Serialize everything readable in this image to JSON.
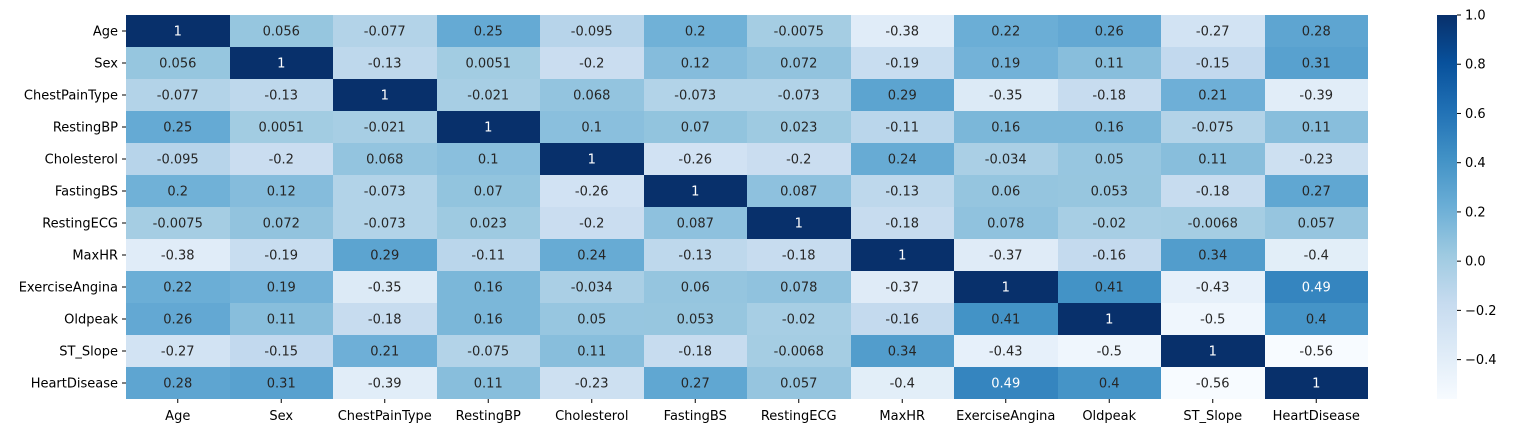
{
  "chart_data": {
    "type": "heatmap",
    "labels": [
      "Age",
      "Sex",
      "ChestPainType",
      "RestingBP",
      "Cholesterol",
      "FastingBS",
      "RestingECG",
      "MaxHR",
      "ExerciseAngina",
      "Oldpeak",
      "ST_Slope",
      "HeartDisease"
    ],
    "values": [
      [
        1,
        0.056,
        -0.077,
        0.25,
        -0.095,
        0.2,
        -0.0075,
        -0.38,
        0.22,
        0.26,
        -0.27,
        0.28
      ],
      [
        0.056,
        1,
        -0.13,
        0.0051,
        -0.2,
        0.12,
        0.072,
        -0.19,
        0.19,
        0.11,
        -0.15,
        0.31
      ],
      [
        -0.077,
        -0.13,
        1,
        -0.021,
        0.068,
        -0.073,
        -0.073,
        0.29,
        -0.35,
        -0.18,
        0.21,
        -0.39
      ],
      [
        0.25,
        0.0051,
        -0.021,
        1,
        0.1,
        0.07,
        0.023,
        -0.11,
        0.16,
        0.16,
        -0.075,
        0.11
      ],
      [
        -0.095,
        -0.2,
        0.068,
        0.1,
        1,
        -0.26,
        -0.2,
        0.24,
        -0.034,
        0.05,
        0.11,
        -0.23
      ],
      [
        0.2,
        0.12,
        -0.073,
        0.07,
        -0.26,
        1,
        0.087,
        -0.13,
        0.06,
        0.053,
        -0.18,
        0.27
      ],
      [
        -0.0075,
        0.072,
        -0.073,
        0.023,
        -0.2,
        0.087,
        1,
        -0.18,
        0.078,
        -0.02,
        -0.0068,
        0.057
      ],
      [
        -0.38,
        -0.19,
        0.29,
        -0.11,
        0.24,
        -0.13,
        -0.18,
        1,
        -0.37,
        -0.16,
        0.34,
        -0.4
      ],
      [
        0.22,
        0.19,
        -0.35,
        0.16,
        -0.034,
        0.06,
        0.078,
        -0.37,
        1,
        0.41,
        -0.43,
        0.49
      ],
      [
        0.26,
        0.11,
        -0.18,
        0.16,
        0.05,
        0.053,
        -0.02,
        -0.16,
        0.41,
        1,
        -0.5,
        0.4
      ],
      [
        -0.27,
        -0.15,
        0.21,
        -0.075,
        0.11,
        -0.18,
        -0.0068,
        0.34,
        -0.43,
        -0.5,
        1,
        -0.56
      ],
      [
        0.28,
        0.31,
        -0.39,
        0.11,
        -0.23,
        0.27,
        0.057,
        -0.4,
        0.49,
        0.4,
        -0.56,
        1
      ]
    ],
    "value_labels": [
      [
        "1",
        "0.056",
        "-0.077",
        "0.25",
        "-0.095",
        "0.2",
        "-0.0075",
        "-0.38",
        "0.22",
        "0.26",
        "-0.27",
        "0.28"
      ],
      [
        "0.056",
        "1",
        "-0.13",
        "0.0051",
        "-0.2",
        "0.12",
        "0.072",
        "-0.19",
        "0.19",
        "0.11",
        "-0.15",
        "0.31"
      ],
      [
        "-0.077",
        "-0.13",
        "1",
        "-0.021",
        "0.068",
        "-0.073",
        "-0.073",
        "0.29",
        "-0.35",
        "-0.18",
        "0.21",
        "-0.39"
      ],
      [
        "0.25",
        "0.0051",
        "-0.021",
        "1",
        "0.1",
        "0.07",
        "0.023",
        "-0.11",
        "0.16",
        "0.16",
        "-0.075",
        "0.11"
      ],
      [
        "-0.095",
        "-0.2",
        "0.068",
        "0.1",
        "1",
        "-0.26",
        "-0.2",
        "0.24",
        "-0.034",
        "0.05",
        "0.11",
        "-0.23"
      ],
      [
        "0.2",
        "0.12",
        "-0.073",
        "0.07",
        "-0.26",
        "1",
        "0.087",
        "-0.13",
        "0.06",
        "0.053",
        "-0.18",
        "0.27"
      ],
      [
        "-0.0075",
        "0.072",
        "-0.073",
        "0.023",
        "-0.2",
        "0.087",
        "1",
        "-0.18",
        "0.078",
        "-0.02",
        "-0.0068",
        "0.057"
      ],
      [
        "-0.38",
        "-0.19",
        "0.29",
        "-0.11",
        "0.24",
        "-0.13",
        "-0.18",
        "1",
        "-0.37",
        "-0.16",
        "0.34",
        "-0.4"
      ],
      [
        "0.22",
        "0.19",
        "-0.35",
        "0.16",
        "-0.034",
        "0.06",
        "0.078",
        "-0.37",
        "1",
        "0.41",
        "-0.43",
        "0.49"
      ],
      [
        "0.26",
        "0.11",
        "-0.18",
        "0.16",
        "0.05",
        "0.053",
        "-0.02",
        "-0.16",
        "0.41",
        "1",
        "-0.5",
        "0.4"
      ],
      [
        "-0.27",
        "-0.15",
        "0.21",
        "-0.075",
        "0.11",
        "-0.18",
        "-0.0068",
        "0.34",
        "-0.43",
        "-0.5",
        "1",
        "-0.56"
      ],
      [
        "0.28",
        "0.31",
        "-0.39",
        "0.11",
        "-0.23",
        "0.27",
        "0.057",
        "-0.4",
        "0.49",
        "0.4",
        "-0.56",
        "1"
      ]
    ],
    "colormap": "Blues",
    "color_range": [
      -0.56,
      1
    ],
    "colorbar_ticks": [
      1.0,
      0.8,
      0.6,
      0.4,
      0.2,
      0.0,
      -0.2,
      -0.4
    ],
    "colorbar_tick_labels": [
      "1.0",
      "0.8",
      "0.6",
      "0.4",
      "0.2",
      "0.0",
      "−0.2",
      "−0.4"
    ],
    "title": "",
    "xlabel": "",
    "ylabel": ""
  }
}
